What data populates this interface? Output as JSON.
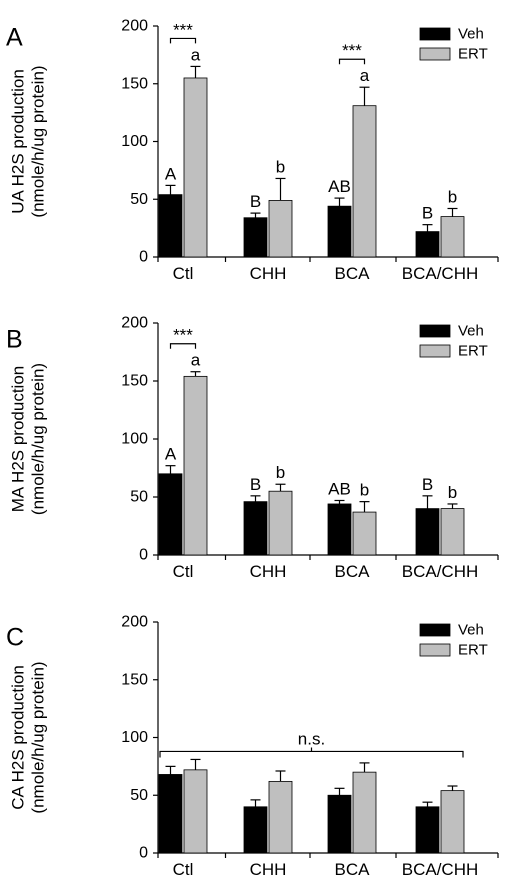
{
  "chart_data": [
    {
      "type": "bar",
      "panel_label": "A",
      "ylabel_line1": "UA H2S production",
      "ylabel_line2": "(nmole/h/ug protein)",
      "ylim": [
        0,
        200
      ],
      "yticks": [
        0,
        50,
        100,
        150,
        200
      ],
      "categories": [
        "Ctl",
        "CHH",
        "BCA",
        "BCA/CHH"
      ],
      "series": [
        {
          "name": "Veh",
          "color": "#000000",
          "values": [
            54,
            34,
            44,
            22
          ],
          "errors": [
            8,
            4,
            7,
            6
          ],
          "labels": [
            "A",
            "B",
            "AB",
            "B"
          ]
        },
        {
          "name": "ERT",
          "color": "#bfbfbf",
          "values": [
            155,
            49,
            131,
            35
          ],
          "errors": [
            10,
            19,
            16,
            7
          ],
          "labels": [
            "a",
            "b",
            "a",
            "b"
          ]
        }
      ],
      "brackets": [
        {
          "category": 0,
          "text": "***"
        },
        {
          "category": 2,
          "text": "***"
        }
      ],
      "legend_position": "top-right"
    },
    {
      "type": "bar",
      "panel_label": "B",
      "ylabel_line1": "MA H2S production",
      "ylabel_line2": "(nmole/h/ug protein)",
      "ylim": [
        0,
        200
      ],
      "yticks": [
        0,
        50,
        100,
        150,
        200
      ],
      "categories": [
        "Ctl",
        "CHH",
        "BCA",
        "BCA/CHH"
      ],
      "series": [
        {
          "name": "Veh",
          "color": "#000000",
          "values": [
            70,
            46,
            44,
            40
          ],
          "errors": [
            7,
            5,
            3,
            11
          ],
          "labels": [
            "A",
            "B",
            "AB",
            "B"
          ]
        },
        {
          "name": "ERT",
          "color": "#bfbfbf",
          "values": [
            154,
            55,
            37,
            40
          ],
          "errors": [
            4,
            6,
            9,
            4
          ],
          "labels": [
            "a",
            "b",
            "b",
            "b"
          ]
        }
      ],
      "brackets": [
        {
          "category": 0,
          "text": "***"
        }
      ],
      "legend_position": "top-right"
    },
    {
      "type": "bar",
      "panel_label": "C",
      "ylabel_line1": "CA H2S production",
      "ylabel_line2": "(nmole/h/ug protein)",
      "ylim": [
        0,
        200
      ],
      "yticks": [
        0,
        50,
        100,
        150,
        200
      ],
      "categories": [
        "Ctl",
        "CHH",
        "BCA",
        "BCA/CHH"
      ],
      "series": [
        {
          "name": "Veh",
          "color": "#000000",
          "values": [
            68,
            40,
            50,
            40
          ],
          "errors": [
            7,
            6,
            6,
            4
          ],
          "labels": [
            "",
            "",
            "",
            ""
          ]
        },
        {
          "name": "ERT",
          "color": "#bfbfbf",
          "values": [
            72,
            62,
            70,
            54
          ],
          "errors": [
            9,
            9,
            8,
            4
          ],
          "labels": [
            "",
            "",
            "",
            ""
          ]
        }
      ],
      "brackets": [],
      "ns_text": "n.s.",
      "legend_position": "top-right"
    }
  ]
}
